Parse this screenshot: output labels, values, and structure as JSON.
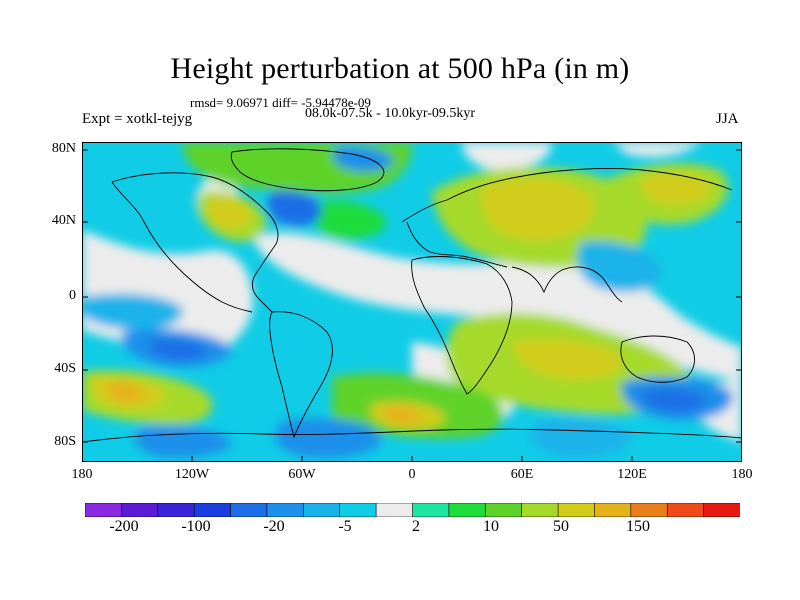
{
  "title": "Height perturbation at 500 hPa (in m)",
  "stats_line": "rmsd= 9.06971 diff= -5.94478e-09",
  "period_line": "08.0k-07.5k - 10.0kyr-09.5kyr",
  "experiment_label": "Expt = xotkl-tejyg",
  "season_label": "JJA",
  "map": {
    "type": "filled-contour world map",
    "lon_range": [
      -180,
      180
    ],
    "lat_range": [
      -90,
      90
    ],
    "y_tick_labels": [
      "80N",
      "40N",
      "0",
      "40S",
      "80S"
    ],
    "x_tick_labels": [
      "180",
      "120W",
      "60W",
      "0",
      "60E",
      "120E",
      "180"
    ]
  },
  "colorbar": {
    "colors": [
      "#8a2be2",
      "#5a1ad6",
      "#3a22d8",
      "#1a3ee0",
      "#1e6ee6",
      "#1e8fea",
      "#1ab2ea",
      "#10cce6",
      "#ececec",
      "#1ee6a0",
      "#1edc3a",
      "#5ed22a",
      "#a6da2a",
      "#d2cc1a",
      "#e6b21a",
      "#ea7e1a",
      "#f04a1a",
      "#e61a12"
    ],
    "labels": [
      "-200",
      "-100",
      "-20",
      "-5",
      "2",
      "10",
      "50",
      "150"
    ]
  }
}
